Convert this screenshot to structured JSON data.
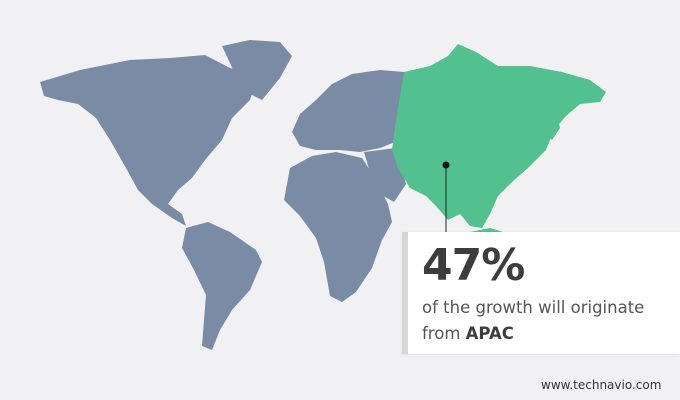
{
  "map": {
    "highlighted_region": "APAC",
    "colors": {
      "default": "#7a8ba6",
      "highlight": "#52c08f",
      "background": "#f1f1f3"
    }
  },
  "callout": {
    "value": "47%",
    "text_line1": "of the growth will originate",
    "text_prefix": "from",
    "region": "APAC"
  },
  "footer": {
    "website": "www.technavio.com"
  }
}
